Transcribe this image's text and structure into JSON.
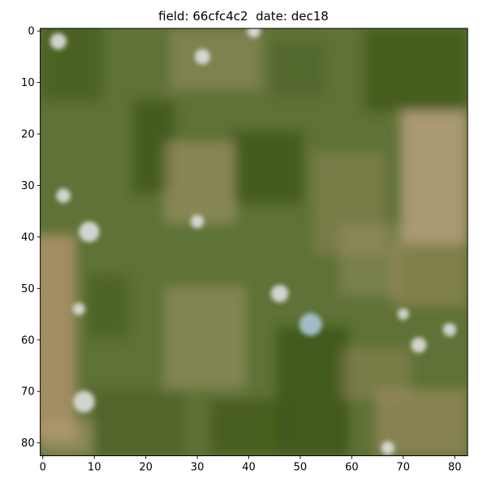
{
  "figure": {
    "title": "field: 66cfc4c2  date: dec18"
  },
  "image": {
    "grid_size": [
      83,
      83
    ],
    "palette": {
      "base_green": "#5f7237",
      "dark_green": "#3d5515",
      "tan": "#a89066",
      "light_tan": "#b7a07b",
      "bright_spot": "#dfe0e0",
      "blue_spot": "#a9c6d6",
      "frame": "#000000"
    }
  },
  "axes": {
    "x_ticks": [
      "0",
      "10",
      "20",
      "30",
      "40",
      "50",
      "60",
      "70",
      "80"
    ],
    "y_ticks": [
      "0",
      "10",
      "20",
      "30",
      "40",
      "50",
      "60",
      "70",
      "80"
    ]
  }
}
